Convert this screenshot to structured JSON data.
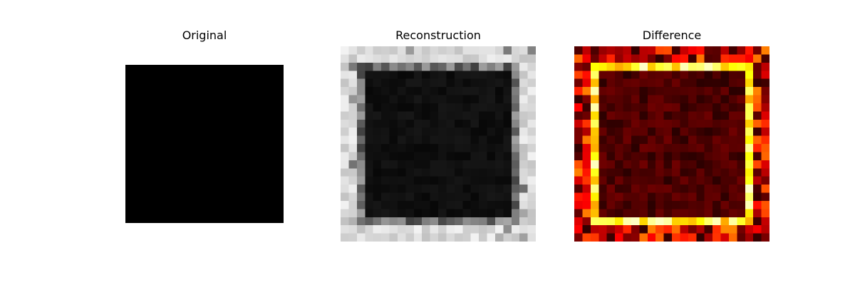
{
  "chart_data": [
    {
      "type": "heatmap",
      "title": "Original",
      "colormap": "gray",
      "grid_size": 1,
      "values": [
        [
          0.0
        ]
      ],
      "axes": "off"
    },
    {
      "type": "heatmap",
      "title": "Reconstruction",
      "colormap": "gray",
      "grid_size": 24,
      "border_value": 0.95,
      "interior_value": 0.03,
      "interior_start": 3,
      "interior_end": 21,
      "axes": "off"
    },
    {
      "type": "heatmap",
      "title": "Difference",
      "colormap": "hot",
      "grid_size": 24,
      "frame_value": 0.85,
      "outer_value": 0.35,
      "interior_value": 0.06,
      "axes": "off"
    }
  ]
}
